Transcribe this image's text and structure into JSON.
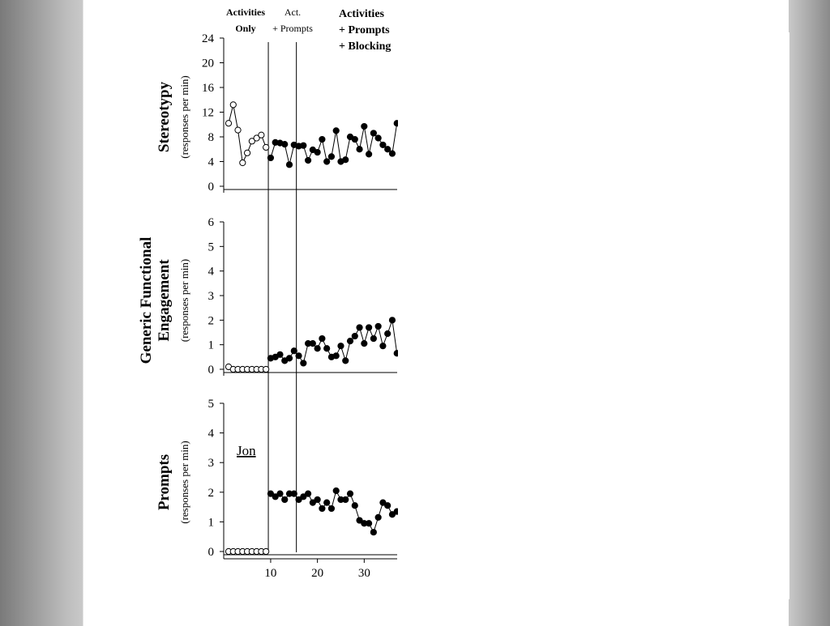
{
  "chart_data": {
    "type": "line",
    "x_ticks": [
      10,
      20,
      30
    ],
    "phases": [
      {
        "lines": [
          "Activities",
          "Only"
        ],
        "bold": true
      },
      {
        "lines": [
          "Act.",
          "+ Prompts"
        ],
        "bold": false
      },
      {
        "lines": [
          "Activities",
          "+ Prompts",
          "+ Blocking"
        ],
        "bold": true
      }
    ],
    "phase_changes": [
      9.5,
      15.5
    ],
    "xlim": [
      0,
      37
    ],
    "panels": [
      {
        "ylabel": "Stereotypy",
        "ylabel_sub": "(responses per min)",
        "ylim": [
          0,
          24
        ],
        "yticks": [
          0,
          4,
          8,
          12,
          16,
          20,
          24
        ],
        "series": [
          {
            "marker": "open",
            "x": [
              1,
              2,
              3,
              4,
              5,
              6,
              7,
              8,
              9
            ],
            "y": [
              10.2,
              13.2,
              9.1,
              3.8,
              5.4,
              7.3,
              7.8,
              8.3,
              6.3
            ]
          },
          {
            "marker": "filled",
            "x": [
              10,
              11,
              12,
              13,
              14,
              15,
              16,
              17,
              18,
              19,
              20,
              21,
              22,
              23,
              24,
              25,
              26,
              27,
              28,
              29,
              30,
              31,
              32,
              33,
              34,
              35,
              36,
              37
            ],
            "y": [
              4.6,
              7.1,
              7.0,
              6.8,
              3.5,
              6.7,
              6.5,
              6.6,
              4.2,
              5.9,
              5.5,
              7.6,
              4.0,
              4.8,
              9.0,
              4.0,
              4.3,
              8.0,
              7.6,
              6.0,
              9.7,
              5.2,
              8.6,
              7.8,
              6.7,
              6.0,
              5.3,
              10.2
            ]
          }
        ]
      },
      {
        "ylabel": "Generic Functional\nEngagement",
        "ylabel_sub": "(responses per min)",
        "ylim": [
          0,
          6
        ],
        "yticks": [
          0,
          1,
          2,
          3,
          4,
          5,
          6
        ],
        "series": [
          {
            "marker": "open",
            "x": [
              1,
              2,
              3,
              4,
              5,
              6,
              7,
              8,
              9
            ],
            "y": [
              0.1,
              0.0,
              0.0,
              0.0,
              0.0,
              0.0,
              0.0,
              0.0,
              0.0
            ]
          },
          {
            "marker": "filled",
            "x": [
              10,
              11,
              12,
              13,
              14,
              15,
              16,
              17,
              18,
              19,
              20,
              21,
              22,
              23,
              24,
              25,
              26,
              27,
              28,
              29,
              30,
              31,
              32,
              33,
              34,
              35,
              36,
              37
            ],
            "y": [
              0.45,
              0.5,
              0.6,
              0.35,
              0.45,
              0.75,
              0.55,
              0.25,
              1.05,
              1.05,
              0.85,
              1.25,
              0.85,
              0.5,
              0.55,
              0.95,
              0.35,
              1.15,
              1.35,
              1.7,
              1.05,
              1.7,
              1.25,
              1.75,
              0.95,
              1.45,
              2.0,
              0.65
            ]
          }
        ]
      },
      {
        "ylabel": "Prompts",
        "ylabel_sub": "(responses per min)",
        "ylim": [
          0,
          5
        ],
        "yticks": [
          0,
          1,
          2,
          3,
          4,
          5
        ],
        "participant": "Jon",
        "series": [
          {
            "marker": "open",
            "x": [
              1,
              2,
              3,
              4,
              5,
              6,
              7,
              8,
              9
            ],
            "y": [
              0,
              0,
              0,
              0,
              0,
              0,
              0,
              0,
              0
            ]
          },
          {
            "marker": "filled",
            "x": [
              10,
              11,
              12,
              13,
              14,
              15,
              16,
              17,
              18,
              19,
              20,
              21,
              22,
              23,
              24,
              25,
              26,
              27,
              28,
              29,
              30,
              31,
              32,
              33,
              34,
              35,
              36,
              37
            ],
            "y": [
              1.95,
              1.85,
              1.95,
              1.75,
              1.95,
              1.95,
              1.75,
              1.85,
              1.95,
              1.65,
              1.75,
              1.45,
              1.65,
              1.45,
              2.05,
              1.75,
              1.75,
              1.95,
              1.55,
              1.05,
              0.95,
              0.95,
              0.65,
              1.15,
              1.65,
              1.55,
              1.25,
              1.35
            ]
          }
        ]
      }
    ]
  }
}
